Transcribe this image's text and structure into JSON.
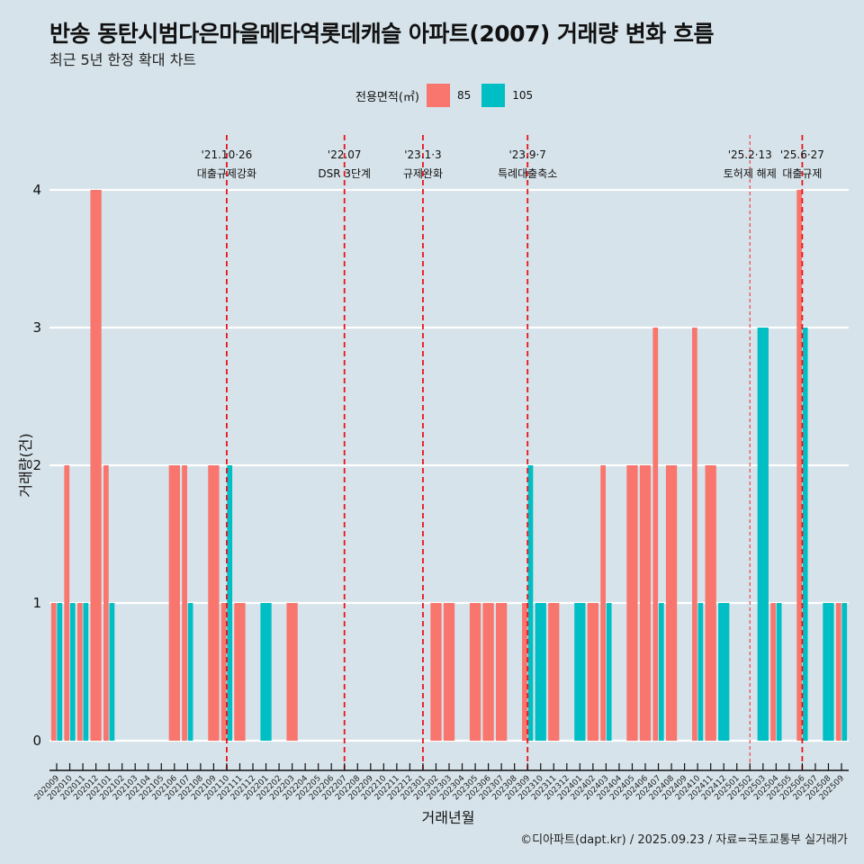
{
  "header": {
    "title": "반송 동탄시범다은마을메타역롯데캐슬 아파트(2007) 거래량 변화 흐름",
    "subtitle": "최근 5년 한정 확대 차트"
  },
  "legend": {
    "title": "전용면적(㎡)",
    "items": [
      {
        "label": "85",
        "color": "#F8766D"
      },
      {
        "label": "105",
        "color": "#00BFC4"
      }
    ]
  },
  "caption": "©디아파트(dapt.kr) / 2025.09.23 / 자료=국토교통부 실거래가",
  "chart_data": {
    "type": "bar",
    "title": "반송 동탄시범다은마을메타역롯데캐슬 아파트(2007) 거래량 변화 흐름",
    "subtitle": "최근 5년 한정 확대 차트",
    "xlabel": "거래년월",
    "ylabel": "거래량(건)",
    "ylim": [
      0,
      4
    ],
    "yticks": [
      0,
      1,
      2,
      3,
      4
    ],
    "grid": "horizontal",
    "legend_position": "top",
    "categories": [
      "202009",
      "202010",
      "202011",
      "202012",
      "202101",
      "202102",
      "202103",
      "202104",
      "202105",
      "202106",
      "202107",
      "202108",
      "202109",
      "202110",
      "202111",
      "202112",
      "202201",
      "202202",
      "202203",
      "202204",
      "202205",
      "202206",
      "202207",
      "202208",
      "202209",
      "202210",
      "202211",
      "202212",
      "202301",
      "202302",
      "202303",
      "202304",
      "202305",
      "202306",
      "202307",
      "202308",
      "202309",
      "202310",
      "202311",
      "202312",
      "202401",
      "202402",
      "202403",
      "202404",
      "202405",
      "202406",
      "202407",
      "202408",
      "202409",
      "202410",
      "202411",
      "202412",
      "202501",
      "202502",
      "202503",
      "202504",
      "202505",
      "202506",
      "202507",
      "202508",
      "202509"
    ],
    "series": [
      {
        "name": "85",
        "color": "#F8766D",
        "values": [
          1,
          2,
          1,
          4,
          2,
          null,
          null,
          null,
          null,
          2,
          2,
          null,
          2,
          1,
          1,
          null,
          null,
          null,
          1,
          null,
          null,
          null,
          null,
          null,
          null,
          null,
          null,
          null,
          null,
          1,
          1,
          null,
          1,
          1,
          1,
          null,
          1,
          null,
          1,
          null,
          null,
          1,
          2,
          null,
          2,
          2,
          3,
          2,
          null,
          3,
          2,
          null,
          null,
          null,
          null,
          1,
          null,
          4,
          null,
          null,
          1
        ]
      },
      {
        "name": "105",
        "color": "#00BFC4",
        "values": [
          1,
          1,
          1,
          null,
          1,
          null,
          null,
          null,
          null,
          null,
          1,
          null,
          null,
          2,
          null,
          null,
          1,
          null,
          null,
          null,
          null,
          null,
          null,
          null,
          null,
          null,
          null,
          null,
          null,
          null,
          null,
          null,
          null,
          null,
          null,
          null,
          2,
          1,
          null,
          null,
          1,
          null,
          1,
          null,
          null,
          null,
          1,
          null,
          null,
          1,
          null,
          1,
          null,
          null,
          3,
          1,
          null,
          3,
          null,
          1,
          1
        ]
      }
    ],
    "annotations": [
      {
        "x": "202110",
        "date": "'21.10·26",
        "label": "대출규제강화",
        "style": "dashed"
      },
      {
        "x": "202207",
        "date": "'22.07",
        "label": "DSR 3단계",
        "style": "dashed"
      },
      {
        "x": "202301",
        "date": "'23.1·3",
        "label": "규제완화",
        "style": "dashed"
      },
      {
        "x": "202309",
        "date": "'23.9·7",
        "label": "특례대출축소",
        "style": "dashed"
      },
      {
        "x": "202502",
        "date": "'25.2·13",
        "label": "토허제 해제",
        "style": "thin-dashed"
      },
      {
        "x": "202506",
        "date": "'25.6·27",
        "label": "대출규제",
        "style": "dashed"
      }
    ]
  }
}
